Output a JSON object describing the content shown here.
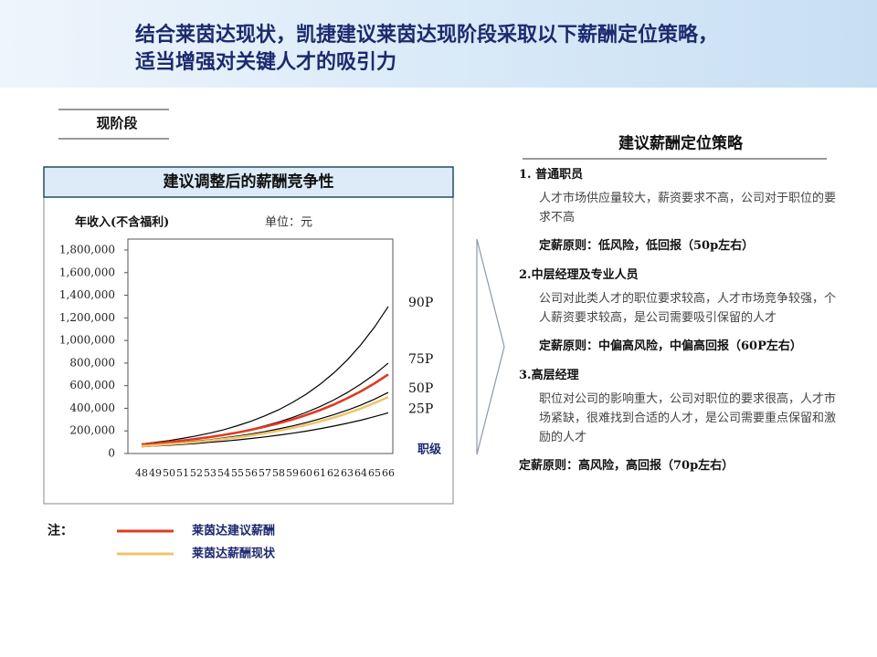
{
  "header": {
    "title_lines": [
      "结合莱茵达现状，凯捷建议莱茵达现阶段采取以下薪酬定位策略，",
      "适当增强对关键人才的吸引力"
    ]
  },
  "section_label": "现阶段",
  "note_label": "注：",
  "chart_data": {
    "type": "line",
    "title": "建议调整后的薪酬竞争性",
    "y_label": "年收入(不含福利)",
    "unit_label": "单位：元",
    "x_label": "职级",
    "categories": [
      "48",
      "49",
      "50",
      "51",
      "52",
      "53",
      "54",
      "55",
      "56",
      "57",
      "58",
      "59",
      "60",
      "61",
      "62",
      "63",
      "64",
      "65",
      "66"
    ],
    "ylim": [
      0,
      1800000
    ],
    "yticks": [
      0,
      {
        "value": 200000,
        "label": "200,000"
      },
      {
        "value": 400000,
        "label": "400,000"
      },
      {
        "value": 600000,
        "label": "600,000"
      },
      {
        "value": 800000,
        "label": "800,000"
      },
      {
        "value": 1000000,
        "label": "1,000,000"
      },
      {
        "value": 1200000,
        "label": "1,200,000"
      },
      {
        "value": 1400000,
        "label": "1,400,000"
      },
      {
        "value": 1600000,
        "label": "1,600,000"
      },
      {
        "value": 1800000,
        "label": "1,800,000"
      }
    ],
    "series": [
      {
        "name": "90P",
        "color": "#000000",
        "label": "end",
        "values": [
          85000,
          99000,
          115000,
          134000,
          156000,
          181000,
          211000,
          246000,
          286000,
          333000,
          387000,
          451000,
          524000,
          610000,
          710000,
          826000,
          962000,
          1119000,
          1300000
        ]
      },
      {
        "name": "75P",
        "color": "#000000",
        "label": "end",
        "values": [
          75000,
          86000,
          98000,
          111000,
          127000,
          145000,
          165000,
          188000,
          215000,
          245000,
          279000,
          318000,
          363000,
          414000,
          472000,
          538000,
          614000,
          700000,
          800000
        ]
      },
      {
        "name": "50P",
        "color": "#000000",
        "label": "end",
        "values": [
          70000,
          78000,
          88000,
          98000,
          110000,
          123000,
          138000,
          155000,
          173000,
          194000,
          218000,
          244000,
          273000,
          306000,
          342000,
          383000,
          429000,
          481000,
          540000
        ]
      },
      {
        "name": "25P",
        "color": "#000000",
        "label": "end",
        "values": [
          60000,
          66000,
          73000,
          81000,
          89000,
          99000,
          109000,
          120000,
          133000,
          147000,
          162000,
          179000,
          198000,
          219000,
          242000,
          267000,
          295000,
          326000,
          360000
        ]
      },
      {
        "name": "莱茵达建议薪酬",
        "color": "#e03a22",
        "label": "legend",
        "values": [
          80000,
          90000,
          102000,
          115000,
          130000,
          146000,
          165000,
          186000,
          210000,
          237000,
          267000,
          301000,
          340000,
          383000,
          432000,
          488000,
          550000,
          621000,
          700000
        ]
      },
      {
        "name": "莱茵达薪酬现状",
        "color": "#f0c46a",
        "label": "legend",
        "values": [
          65000,
          73000,
          82000,
          91000,
          102000,
          115000,
          128000,
          144000,
          161000,
          180000,
          202000,
          226000,
          253000,
          283000,
          317000,
          355000,
          398000,
          446000,
          500000
        ]
      }
    ]
  },
  "strategy": {
    "title": "建议薪酬定位策略",
    "items": [
      {
        "heading": "1. 普通职员",
        "body": "人才市场供应量较大，薪资要求不高，公司对于职位的要求不高",
        "principle": "定薪原则：低风险，低回报（50p左右）"
      },
      {
        "heading": "2.中层经理及专业人员",
        "body": "公司对此类人才的职位要求较高，人才市场竞争较强，个人薪资要求较高，是公司需要吸引保留的人才",
        "principle": "定薪原则：中偏高风险，中偏高回报（60P左右）"
      },
      {
        "heading": "3.高层经理",
        "body": "职位对公司的影响重大，公司对职位的要求很高，人才市场紧缺，很难找到合适的人才，是公司需要重点保留和激励的人才",
        "principle": "定薪原则：高风险，高回报（70p左右）"
      }
    ]
  }
}
